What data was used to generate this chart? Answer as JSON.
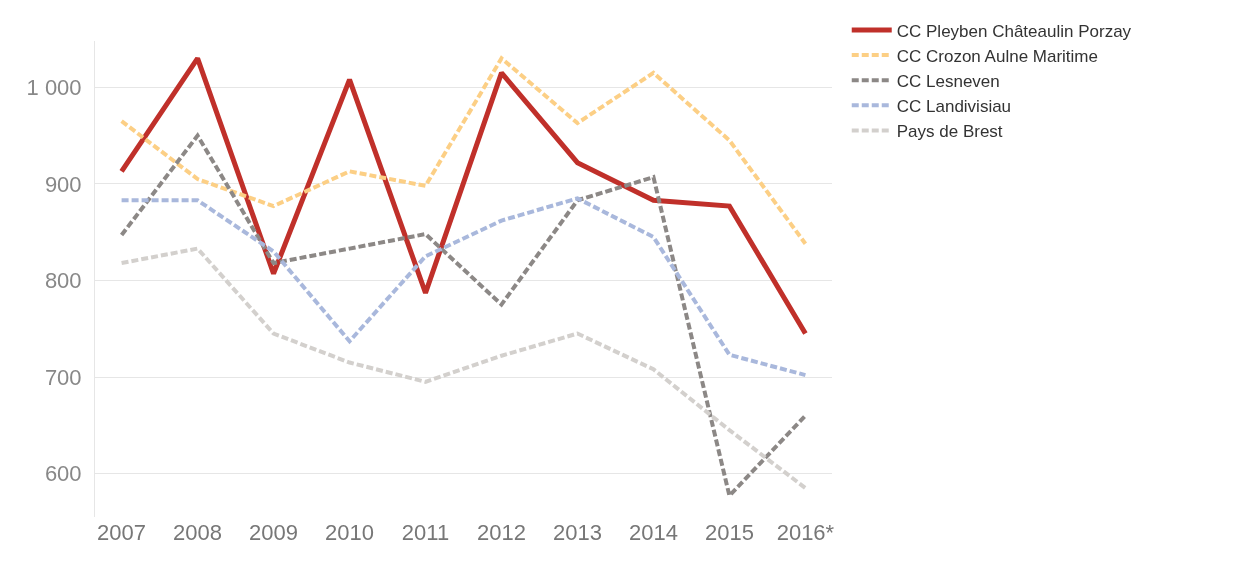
{
  "chart_data": {
    "type": "line",
    "categories": [
      "2007",
      "2008",
      "2009",
      "2010",
      "2011",
      "2012",
      "2013",
      "2014",
      "2015",
      "2016*"
    ],
    "series": [
      {
        "name": "CC Pleyben Châteaulin Porzay",
        "color": "#c0302a",
        "line_style": "solid",
        "values": [
          913,
          1030,
          807,
          1008,
          787,
          1015,
          922,
          883,
          877,
          745
        ]
      },
      {
        "name": "CC Crozon Aulne Maritime",
        "color": "#fccf85",
        "line_style": "dashed",
        "values": [
          965,
          905,
          877,
          913,
          898,
          1030,
          963,
          1015,
          945,
          838
        ]
      },
      {
        "name": "CC Lesneven",
        "color": "#8c8886",
        "line_style": "dashed",
        "values": [
          847,
          950,
          818,
          833,
          848,
          775,
          883,
          907,
          577,
          660
        ]
      },
      {
        "name": "CC Landivisiau",
        "color": "#a9b8dc",
        "line_style": "dashed",
        "values": [
          883,
          883,
          830,
          737,
          825,
          862,
          885,
          845,
          723,
          702
        ]
      },
      {
        "name": "Pays de Brest",
        "color": "#d3d0cd",
        "line_style": "dashed",
        "values": [
          818,
          833,
          745,
          715,
          695,
          722,
          745,
          708,
          645,
          585
        ]
      }
    ],
    "ylim": [
      555,
      1048
    ],
    "yticks": [
      {
        "value": 600,
        "label": "600"
      },
      {
        "value": 700,
        "label": "700"
      },
      {
        "value": 800,
        "label": "800"
      },
      {
        "value": 900,
        "label": "900"
      },
      {
        "value": 1000,
        "label": "1 000"
      }
    ],
    "grid": "y",
    "legend": "top right",
    "marker": "none"
  }
}
